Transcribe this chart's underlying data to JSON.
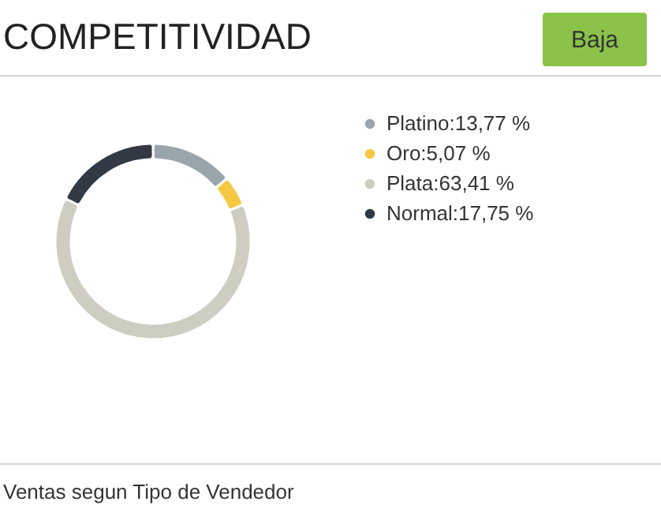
{
  "chart_data": {
    "type": "donut",
    "title": "COMPETITIVIDAD",
    "categories": [
      "Platino",
      "Oro",
      "Plata",
      "Normal"
    ],
    "values": [
      13.77,
      5.07,
      63.41,
      17.75
    ],
    "value_labels": [
      "13,77 %",
      "5,07 %",
      "63,41 %",
      "17,75 %"
    ],
    "colors": [
      "#9aa5ab",
      "#f5c842",
      "#cdcdc1",
      "#323945"
    ],
    "legend": "right",
    "annotations": [
      "Baja",
      "Ventas segun Tipo de Vendedor"
    ]
  }
}
